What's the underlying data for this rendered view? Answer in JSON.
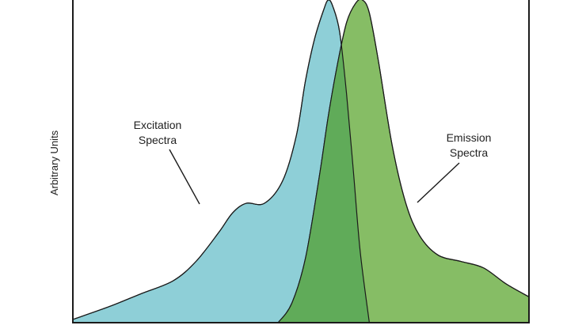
{
  "chart_data": {
    "type": "area",
    "title": "",
    "xlabel": "",
    "ylabel": "Arbitrary Units",
    "xlim": [
      0,
      100
    ],
    "ylim": [
      0,
      100
    ],
    "grid": false,
    "legend": "none",
    "series": [
      {
        "name": "Excitation Spectra",
        "color": "#8ecfd7",
        "x": [
          0,
          8,
          15,
          22,
          27,
          32,
          35,
          38,
          42,
          46,
          49,
          51,
          53,
          55,
          56,
          57,
          58.5,
          60,
          61.5,
          63,
          65
        ],
        "values": [
          1,
          5,
          9,
          13,
          19,
          28,
          34,
          37,
          37,
          44,
          58,
          75,
          88,
          97,
          100,
          98,
          90,
          71,
          47,
          22,
          0
        ]
      },
      {
        "name": "Emission Spectra",
        "color": "#86bd65",
        "x": [
          45,
          48,
          51,
          54,
          56,
          58,
          60,
          62,
          63.5,
          65,
          67,
          70,
          73,
          76,
          80,
          85,
          90,
          95,
          100
        ],
        "values": [
          0,
          6,
          20,
          45,
          64,
          80,
          93,
          99,
          100,
          96,
          81,
          55,
          37,
          27,
          21,
          19,
          17,
          12,
          8
        ]
      }
    ],
    "overlap_color": "#60ab59",
    "annotations": [
      {
        "text": [
          "Excitation",
          "Spectra"
        ],
        "series": "Excitation Spectra"
      },
      {
        "text": [
          "Emission",
          "Spectra"
        ],
        "series": "Emission Spectra"
      }
    ]
  }
}
